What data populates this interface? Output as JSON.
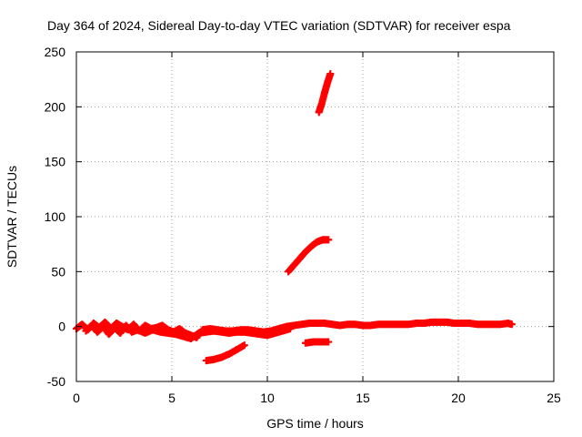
{
  "chart_data": {
    "type": "scatter",
    "title": "Day 364 of 2024, Sidereal Day-to-day VTEC variation (SDTVAR) for receiver espa",
    "xlabel": "GPS time / hours",
    "ylabel": "SDTVAR / TECUs",
    "xlim": [
      0,
      25
    ],
    "ylim": [
      -50,
      250
    ],
    "xticks": [
      "0",
      "5",
      "10",
      "15",
      "20",
      "25"
    ],
    "yticks": [
      "-50",
      "0",
      "50",
      "100",
      "150",
      "200",
      "250"
    ],
    "grid": true,
    "legend": "none",
    "marker": "plus",
    "color": "#ff0000",
    "series": [
      {
        "points": [
          [
            0.0,
            -2
          ],
          [
            0.3,
            2
          ],
          [
            0.6,
            -3
          ],
          [
            0.9,
            3
          ],
          [
            1.2,
            -1
          ],
          [
            1.5,
            4
          ],
          [
            1.8,
            -2
          ],
          [
            2.1,
            3
          ],
          [
            2.4,
            0
          ],
          [
            2.7,
            -3
          ],
          [
            3.0,
            2
          ],
          [
            3.3,
            -4
          ],
          [
            3.6,
            1
          ],
          [
            3.9,
            -2
          ],
          [
            4.2,
            -1
          ],
          [
            4.5,
            1
          ],
          [
            4.8,
            -3
          ],
          [
            5.1,
            -5
          ],
          [
            5.4,
            -2
          ],
          [
            5.7,
            -6
          ],
          [
            6.0,
            -8
          ],
          [
            6.3,
            -10
          ],
          [
            6.6,
            -3
          ],
          [
            7.0,
            -2
          ],
          [
            7.4,
            -3
          ],
          [
            7.8,
            -4
          ],
          [
            8.2,
            -4
          ],
          [
            8.6,
            -3
          ],
          [
            9.0,
            -3
          ],
          [
            9.4,
            -4
          ],
          [
            9.8,
            -5
          ],
          [
            10.2,
            -4
          ],
          [
            10.6,
            -2
          ],
          [
            11.0,
            0
          ],
          [
            11.4,
            1
          ],
          [
            11.8,
            2
          ],
          [
            12.2,
            3
          ],
          [
            12.6,
            3
          ],
          [
            13.0,
            3
          ],
          [
            13.4,
            2
          ],
          [
            13.8,
            1
          ],
          [
            14.2,
            2
          ],
          [
            14.6,
            2
          ],
          [
            15.0,
            1
          ],
          [
            15.4,
            1
          ],
          [
            15.8,
            2
          ],
          [
            16.2,
            2
          ],
          [
            16.6,
            2
          ],
          [
            17.0,
            2
          ],
          [
            17.4,
            2
          ],
          [
            17.8,
            3
          ],
          [
            18.2,
            3
          ],
          [
            18.6,
            4
          ],
          [
            19.0,
            4
          ],
          [
            19.4,
            4
          ],
          [
            19.8,
            3
          ],
          [
            20.2,
            3
          ],
          [
            20.6,
            3
          ],
          [
            21.0,
            2
          ],
          [
            21.4,
            2
          ],
          [
            21.8,
            2
          ],
          [
            22.2,
            2
          ],
          [
            22.6,
            3
          ],
          [
            22.8,
            2
          ]
        ]
      },
      {
        "points": [
          [
            0.5,
            -4
          ],
          [
            0.8,
            1
          ],
          [
            1.1,
            -5
          ],
          [
            1.4,
            0
          ],
          [
            1.7,
            -7
          ],
          [
            2.0,
            -1
          ],
          [
            2.3,
            -6
          ],
          [
            2.6,
            1
          ],
          [
            2.9,
            -5
          ],
          [
            3.2,
            -3
          ],
          [
            3.6,
            -6
          ],
          [
            4.0,
            -3
          ],
          [
            4.4,
            -5
          ],
          [
            4.8,
            -6
          ],
          [
            5.2,
            -7
          ],
          [
            5.6,
            -9
          ],
          [
            6.0,
            -11
          ],
          [
            6.4,
            -6
          ],
          [
            6.8,
            -5
          ],
          [
            7.2,
            -4
          ],
          [
            7.6,
            -5
          ],
          [
            8.0,
            -6
          ],
          [
            8.4,
            -5
          ],
          [
            8.8,
            -5
          ],
          [
            9.2,
            -6
          ],
          [
            9.6,
            -7
          ],
          [
            10.0,
            -8
          ],
          [
            10.4,
            -6
          ],
          [
            10.8,
            -4
          ],
          [
            11.2,
            -2
          ]
        ]
      },
      {
        "points": [
          [
            6.8,
            -31
          ],
          [
            7.2,
            -30
          ],
          [
            7.6,
            -28
          ],
          [
            8.0,
            -25
          ],
          [
            8.4,
            -21
          ],
          [
            8.8,
            -17
          ]
        ]
      },
      {
        "points": [
          [
            12.0,
            -15
          ],
          [
            12.4,
            -14
          ],
          [
            12.8,
            -14
          ],
          [
            13.2,
            -14
          ]
        ]
      },
      {
        "points": [
          [
            11.1,
            50
          ],
          [
            11.4,
            56
          ],
          [
            11.7,
            62
          ],
          [
            12.0,
            68
          ],
          [
            12.3,
            73
          ],
          [
            12.6,
            77
          ],
          [
            12.9,
            79
          ],
          [
            13.2,
            79
          ]
        ]
      },
      {
        "points": [
          [
            12.7,
            195
          ],
          [
            12.85,
            203
          ],
          [
            13.0,
            213
          ],
          [
            13.15,
            222
          ],
          [
            13.3,
            230
          ]
        ]
      }
    ]
  }
}
